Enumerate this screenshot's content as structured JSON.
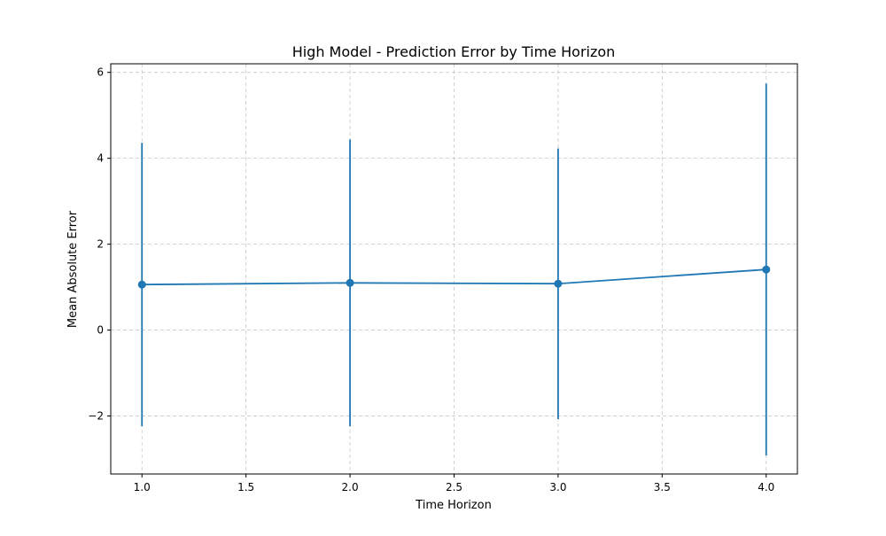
{
  "chart_data": {
    "type": "line",
    "title": "High Model - Prediction Error by Time Horizon",
    "xlabel": "Time Horizon",
    "ylabel": "Mean Absolute Error",
    "xlim": [
      0.85,
      4.15
    ],
    "ylim": [
      -3.35,
      6.2
    ],
    "x_ticks": [
      1.0,
      1.5,
      2.0,
      2.5,
      3.0,
      3.5,
      4.0
    ],
    "x_tick_labels": [
      "1.0",
      "1.5",
      "2.0",
      "2.5",
      "3.0",
      "3.5",
      "4.0"
    ],
    "y_ticks": [
      -2,
      0,
      2,
      4,
      6
    ],
    "y_tick_labels": [
      "−2",
      "0",
      "2",
      "4",
      "6"
    ],
    "grid": true,
    "grid_style": "dashed",
    "series": [
      {
        "color": "#1f77b4",
        "marker": "circle",
        "x": [
          1.0,
          2.0,
          3.0,
          4.0
        ],
        "y": [
          1.06,
          1.1,
          1.08,
          1.41
        ],
        "error_low": [
          -2.24,
          -2.24,
          -2.07,
          -2.92
        ],
        "error_high": [
          4.36,
          4.44,
          4.23,
          5.74
        ]
      }
    ]
  }
}
